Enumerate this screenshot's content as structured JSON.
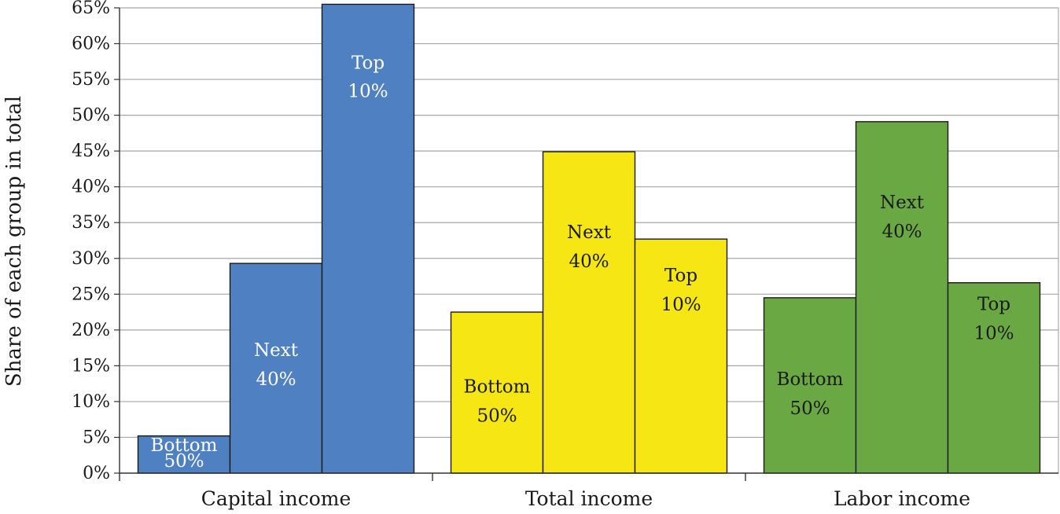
{
  "chart_data": {
    "type": "bar",
    "ylabel": "Share of each group in total",
    "ylim": [
      0,
      65
    ],
    "yticks": [
      0,
      5,
      10,
      15,
      20,
      25,
      30,
      35,
      40,
      45,
      50,
      55,
      60,
      65
    ],
    "ytick_labels": [
      "0%",
      "5%",
      "10%",
      "15%",
      "20%",
      "25%",
      "30%",
      "35%",
      "40%",
      "45%",
      "50%",
      "55%",
      "60%",
      "65%"
    ],
    "grid": "horizontal",
    "groups": [
      {
        "category": "Capital income",
        "color": "#4f81c2",
        "label_color": "#ffffff",
        "bars": [
          {
            "label_line1": "Bottom",
            "label_line2": "50%",
            "value": 5.2
          },
          {
            "label_line1": "Next",
            "label_line2": "40%",
            "value": 29.3
          },
          {
            "label_line1": "Top",
            "label_line2": "10%",
            "value": 65.5
          }
        ]
      },
      {
        "category": "Total income",
        "color": "#f5e614",
        "label_color": "#1a1a1a",
        "bars": [
          {
            "label_line1": "Bottom",
            "label_line2": "50%",
            "value": 22.5
          },
          {
            "label_line1": "Next",
            "label_line2": "40%",
            "value": 44.9
          },
          {
            "label_line1": "Top",
            "label_line2": "10%",
            "value": 32.7
          }
        ]
      },
      {
        "category": "Labor income",
        "color": "#6aa844",
        "label_color": "#1a1a1a",
        "bars": [
          {
            "label_line1": "Bottom",
            "label_line2": "50%",
            "value": 24.5
          },
          {
            "label_line1": "Next",
            "label_line2": "40%",
            "value": 49.1
          },
          {
            "label_line1": "Top",
            "label_line2": "10%",
            "value": 26.6
          }
        ]
      }
    ]
  }
}
